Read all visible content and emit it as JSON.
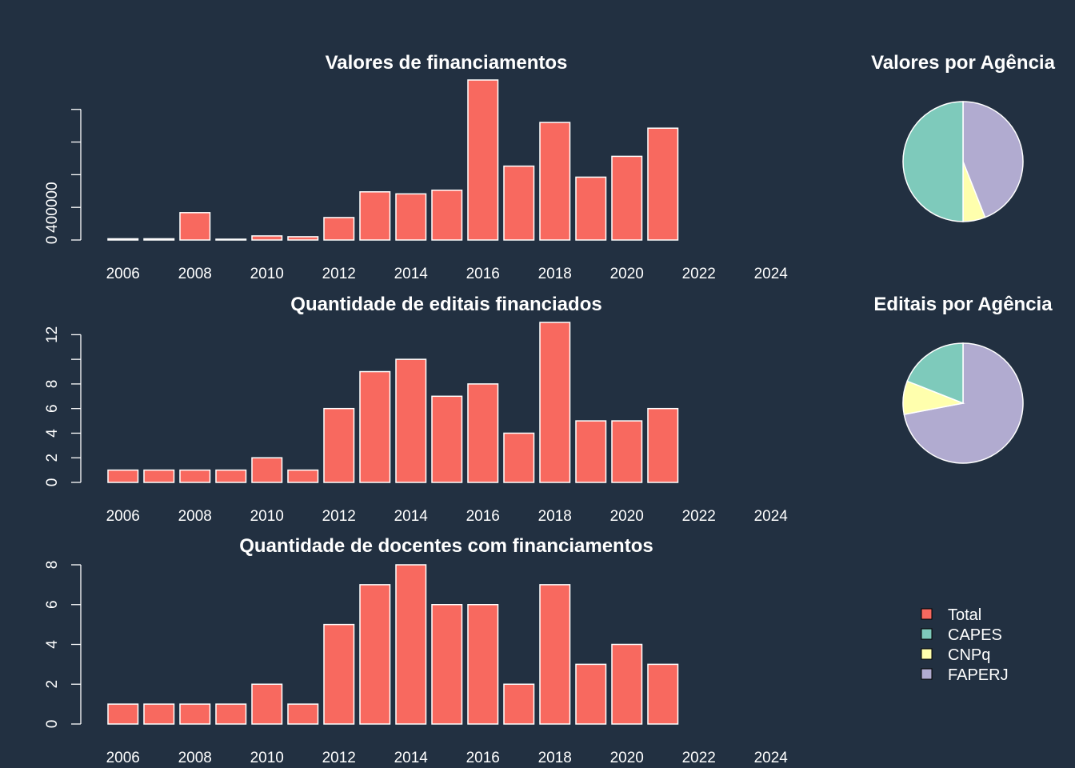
{
  "colors": {
    "background": "#223041",
    "total": "#F8695F",
    "CAPES": "#7ECABB",
    "CNPq": "#FFFFAD",
    "FAPERJ": "#B1ABD0",
    "outline": "#FFFFFF"
  },
  "chart_data": [
    {
      "type": "bar",
      "title": "Valores de financiamentos",
      "categories": [
        "2006",
        "2007",
        "2008",
        "2009",
        "2010",
        "2011",
        "2012",
        "2013",
        "2014",
        "2015",
        "2016",
        "2017",
        "2018",
        "2019",
        "2020",
        "2021",
        "2022",
        "2023",
        "2024"
      ],
      "x_tick_labels": [
        "2006",
        "2008",
        "2010",
        "2012",
        "2014",
        "2016",
        "2018",
        "2020",
        "2022",
        "2024"
      ],
      "values": [
        15000,
        15000,
        335000,
        10000,
        50000,
        40000,
        275000,
        590000,
        565000,
        610000,
        1960000,
        905000,
        1440000,
        770000,
        1025000,
        1370000,
        0,
        0,
        0
      ],
      "y_ticks": [
        0,
        400000,
        800000,
        1200000,
        1600000
      ],
      "y_tick_labels": [
        "0",
        "400000"
      ],
      "ylim": [
        0,
        1960000
      ]
    },
    {
      "type": "bar",
      "title": "Quantidade de editais financiados",
      "categories": [
        "2006",
        "2007",
        "2008",
        "2009",
        "2010",
        "2011",
        "2012",
        "2013",
        "2014",
        "2015",
        "2016",
        "2017",
        "2018",
        "2019",
        "2020",
        "2021",
        "2022",
        "2023",
        "2024"
      ],
      "x_tick_labels": [
        "2006",
        "2008",
        "2010",
        "2012",
        "2014",
        "2016",
        "2018",
        "2020",
        "2022",
        "2024"
      ],
      "values": [
        1,
        1,
        1,
        1,
        2,
        1,
        6,
        9,
        10,
        7,
        8,
        4,
        13,
        5,
        5,
        6,
        0,
        0,
        0
      ],
      "y_ticks": [
        0,
        2,
        4,
        6,
        8,
        10,
        12
      ],
      "y_tick_labels": [
        "0",
        "2",
        "4",
        "6",
        "8",
        "",
        "12"
      ],
      "ylim": [
        0,
        13
      ]
    },
    {
      "type": "bar",
      "title": "Quantidade de docentes com financiamentos",
      "categories": [
        "2006",
        "2007",
        "2008",
        "2009",
        "2010",
        "2011",
        "2012",
        "2013",
        "2014",
        "2015",
        "2016",
        "2017",
        "2018",
        "2019",
        "2020",
        "2021",
        "2022",
        "2023",
        "2024"
      ],
      "x_tick_labels": [
        "2006",
        "2008",
        "2010",
        "2012",
        "2014",
        "2016",
        "2018",
        "2020",
        "2022",
        "2024"
      ],
      "values": [
        1,
        1,
        1,
        1,
        2,
        1,
        5,
        7,
        8,
        6,
        6,
        2,
        7,
        3,
        4,
        3,
        0,
        0,
        0
      ],
      "y_ticks": [
        0,
        2,
        4,
        6,
        8
      ],
      "y_tick_labels": [
        "0",
        "2",
        "4",
        "6",
        "8"
      ],
      "ylim": [
        0,
        8
      ]
    },
    {
      "type": "pie",
      "title": "Valores por Agência",
      "labels": [
        "FAPERJ",
        "CNPq",
        "CAPES"
      ],
      "values": [
        44,
        6,
        50
      ]
    },
    {
      "type": "pie",
      "title": "Editais por Agência",
      "labels": [
        "FAPERJ",
        "CNPq",
        "CAPES"
      ],
      "values": [
        72,
        9,
        19
      ]
    }
  ],
  "legend": {
    "placement": "right",
    "items": [
      {
        "label": "Total",
        "color": "#F8695F"
      },
      {
        "label": "CAPES",
        "color": "#7ECABB"
      },
      {
        "label": "CNPq",
        "color": "#FFFFAD"
      },
      {
        "label": "FAPERJ",
        "color": "#B1ABD0"
      }
    ]
  }
}
